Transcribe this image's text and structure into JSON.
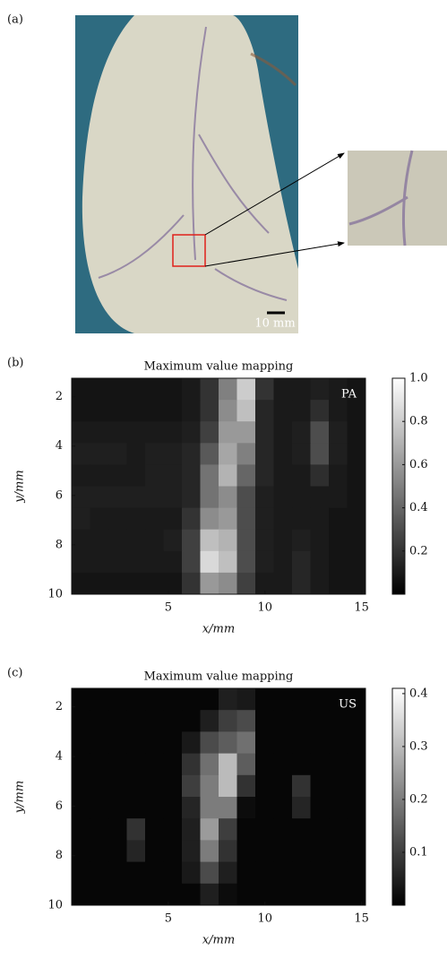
{
  "photo": {
    "label": "(a)",
    "scale_bar": "10 mm"
  },
  "chart_data": [
    {
      "type": "heatmap",
      "label": "(b)",
      "title": "Maximum value mapping",
      "annotation": "PA",
      "xlabel": "x/mm",
      "ylabel": "y/mm",
      "xlim": [
        0,
        15.2
      ],
      "xticks": [
        5,
        10,
        15
      ],
      "ylim": [
        10,
        1.25
      ],
      "yticks": [
        2,
        4,
        6,
        8,
        10
      ],
      "clim": [
        0,
        1
      ],
      "cticks": [
        0.2,
        0.4,
        0.6,
        0.8,
        {
          "value": 1,
          "label": "1.0"
        }
      ],
      "z": [
        [
          0.08,
          0.08,
          0.08,
          0.08,
          0.08,
          0.08,
          0.1,
          0.2,
          0.5,
          0.8,
          0.2,
          0.1,
          0.1,
          0.12,
          0.1,
          0.08
        ],
        [
          0.08,
          0.08,
          0.08,
          0.08,
          0.08,
          0.08,
          0.1,
          0.2,
          0.55,
          0.75,
          0.15,
          0.1,
          0.1,
          0.18,
          0.1,
          0.08
        ],
        [
          0.1,
          0.1,
          0.1,
          0.1,
          0.1,
          0.1,
          0.12,
          0.25,
          0.6,
          0.6,
          0.15,
          0.1,
          0.12,
          0.3,
          0.12,
          0.08
        ],
        [
          0.12,
          0.12,
          0.12,
          0.1,
          0.12,
          0.12,
          0.15,
          0.35,
          0.65,
          0.5,
          0.15,
          0.1,
          0.12,
          0.3,
          0.12,
          0.08
        ],
        [
          0.1,
          0.1,
          0.1,
          0.1,
          0.12,
          0.12,
          0.15,
          0.45,
          0.7,
          0.4,
          0.15,
          0.1,
          0.1,
          0.18,
          0.1,
          0.08
        ],
        [
          0.12,
          0.12,
          0.12,
          0.12,
          0.12,
          0.12,
          0.15,
          0.45,
          0.55,
          0.3,
          0.12,
          0.1,
          0.1,
          0.1,
          0.1,
          0.08
        ],
        [
          0.12,
          0.1,
          0.1,
          0.1,
          0.1,
          0.1,
          0.2,
          0.55,
          0.6,
          0.3,
          0.12,
          0.1,
          0.1,
          0.1,
          0.08,
          0.08
        ],
        [
          0.1,
          0.1,
          0.1,
          0.1,
          0.1,
          0.12,
          0.25,
          0.75,
          0.7,
          0.3,
          0.12,
          0.1,
          0.12,
          0.1,
          0.08,
          0.08
        ],
        [
          0.1,
          0.1,
          0.1,
          0.1,
          0.1,
          0.1,
          0.25,
          0.85,
          0.75,
          0.3,
          0.12,
          0.1,
          0.15,
          0.1,
          0.08,
          0.08
        ],
        [
          0.08,
          0.08,
          0.08,
          0.08,
          0.08,
          0.08,
          0.2,
          0.6,
          0.55,
          0.25,
          0.1,
          0.1,
          0.15,
          0.1,
          0.08,
          0.08
        ]
      ]
    },
    {
      "type": "heatmap",
      "label": "(c)",
      "title": "Maximum value mapping",
      "annotation": "US",
      "xlabel": "x/mm",
      "ylabel": "y/mm",
      "xlim": [
        0,
        15.2
      ],
      "xticks": [
        5,
        10,
        15
      ],
      "ylim": [
        10,
        1.25
      ],
      "yticks": [
        2,
        4,
        6,
        8,
        10
      ],
      "clim": [
        0,
        0.41
      ],
      "cticks": [
        0.1,
        0.2,
        0.3,
        0.4
      ],
      "z": [
        [
          0.01,
          0.01,
          0.01,
          0.01,
          0.01,
          0.01,
          0.01,
          0.01,
          0.05,
          0.04,
          0.01,
          0.01,
          0.01,
          0.01,
          0.01,
          0.01
        ],
        [
          0.01,
          0.01,
          0.01,
          0.01,
          0.01,
          0.01,
          0.01,
          0.05,
          0.1,
          0.12,
          0.01,
          0.01,
          0.01,
          0.01,
          0.01,
          0.01
        ],
        [
          0.01,
          0.01,
          0.01,
          0.01,
          0.01,
          0.01,
          0.04,
          0.12,
          0.15,
          0.18,
          0.01,
          0.01,
          0.01,
          0.01,
          0.01,
          0.01
        ],
        [
          0.01,
          0.01,
          0.01,
          0.01,
          0.01,
          0.01,
          0.08,
          0.18,
          0.3,
          0.15,
          0.01,
          0.01,
          0.01,
          0.01,
          0.01,
          0.01
        ],
        [
          0.01,
          0.01,
          0.01,
          0.01,
          0.01,
          0.01,
          0.1,
          0.2,
          0.3,
          0.08,
          0.01,
          0.01,
          0.08,
          0.01,
          0.01,
          0.01
        ],
        [
          0.01,
          0.01,
          0.01,
          0.01,
          0.01,
          0.01,
          0.06,
          0.2,
          0.2,
          0.02,
          0.01,
          0.01,
          0.06,
          0.01,
          0.01,
          0.01
        ],
        [
          0.01,
          0.01,
          0.01,
          0.08,
          0.01,
          0.01,
          0.05,
          0.25,
          0.1,
          0.01,
          0.01,
          0.01,
          0.01,
          0.01,
          0.01,
          0.01
        ],
        [
          0.01,
          0.01,
          0.01,
          0.06,
          0.01,
          0.01,
          0.05,
          0.2,
          0.08,
          0.01,
          0.01,
          0.01,
          0.01,
          0.01,
          0.01,
          0.01
        ],
        [
          0.01,
          0.01,
          0.01,
          0.01,
          0.01,
          0.01,
          0.04,
          0.12,
          0.05,
          0.01,
          0.01,
          0.01,
          0.01,
          0.01,
          0.01,
          0.01
        ],
        [
          0.01,
          0.01,
          0.01,
          0.01,
          0.01,
          0.01,
          0.01,
          0.05,
          0.02,
          0.01,
          0.01,
          0.01,
          0.01,
          0.01,
          0.01,
          0.01
        ]
      ]
    }
  ]
}
